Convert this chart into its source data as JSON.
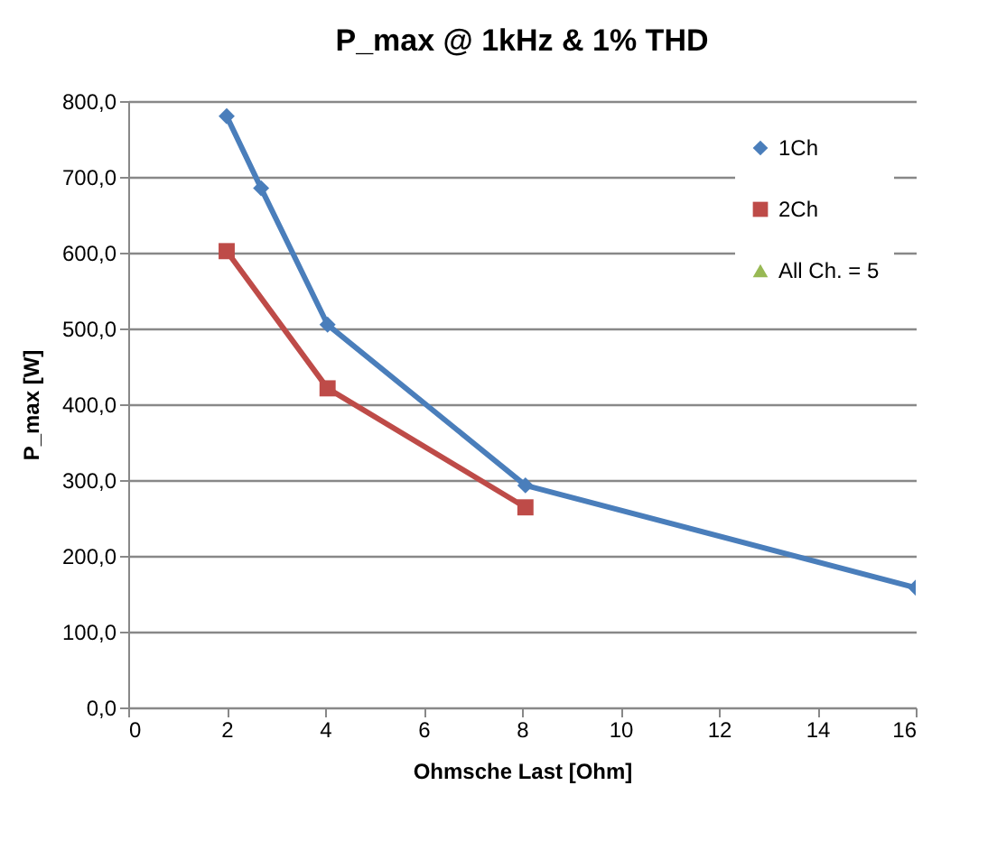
{
  "chart_data": {
    "type": "line",
    "title": "P_max @ 1kHz & 1% THD",
    "xlabel": "Ohmsche Last [Ohm]",
    "ylabel": "P_max [W]",
    "xlim": [
      0,
      16
    ],
    "xticks": [
      0,
      2,
      4,
      6,
      8,
      10,
      12,
      14,
      16
    ],
    "ylim": [
      0,
      800
    ],
    "yticks": [
      {
        "value": 0,
        "label": "0,0"
      },
      {
        "value": 100,
        "label": "100,0"
      },
      {
        "value": 200,
        "label": "200,0"
      },
      {
        "value": 300,
        "label": "300,0"
      },
      {
        "value": 400,
        "label": "400,0"
      },
      {
        "value": 500,
        "label": "500,0"
      },
      {
        "value": 600,
        "label": "600,0"
      },
      {
        "value": 700,
        "label": "700,0"
      },
      {
        "value": 800,
        "label": "800,0"
      }
    ],
    "grid": "y",
    "legend": "top right",
    "series": [
      {
        "name": "1Ch",
        "color": "#4a7ebb",
        "marker": "diamond",
        "x": [
          2,
          2.7,
          4.05,
          8.07,
          16
        ],
        "values": [
          780,
          685,
          505,
          293,
          158
        ]
      },
      {
        "name": "2Ch",
        "color": "#be4b48",
        "marker": "square",
        "x": [
          2,
          4.05,
          8.07
        ],
        "values": [
          602,
          421,
          264
        ]
      },
      {
        "name": "All Ch. = 5",
        "color": "#98b954",
        "marker": "triangle"
      }
    ]
  }
}
